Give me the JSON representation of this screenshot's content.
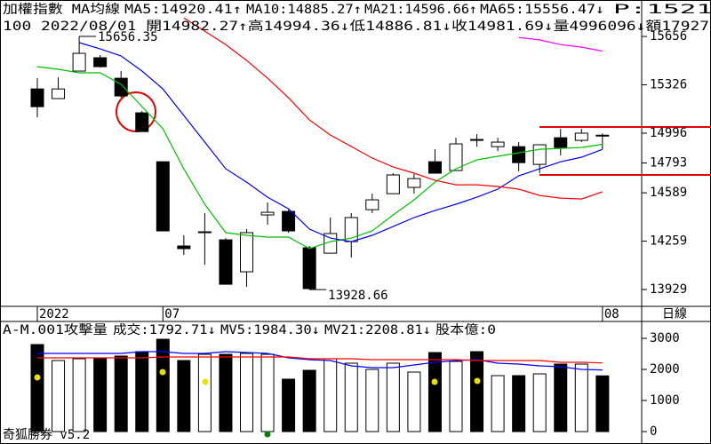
{
  "chart_data": [
    {
      "type": "candlestick",
      "title": "加權指數 MA均線",
      "subtitle": "100 2022/08/01 開14982.27↑高14994.36↓低14886.81↓收14981.69↓量4996096↓額17927",
      "extra_text": "P:1521",
      "x_label": "日線",
      "categories": [
        "2022",
        null,
        null,
        null,
        null,
        null,
        "07",
        null,
        null,
        null,
        null,
        null,
        null,
        null,
        null,
        null,
        null,
        null,
        null,
        null,
        null,
        null,
        null,
        null,
        null,
        null,
        null,
        "08"
      ],
      "open": [
        15298,
        15232,
        15420,
        15511,
        15371,
        15135,
        14801,
        14226,
        14323,
        14268,
        14050,
        14438,
        14462,
        14214,
        14177,
        14256,
        14474,
        14583,
        14626,
        14801,
        14741,
        14953,
        14904,
        14904,
        14783,
        14965,
        14947,
        14982.27
      ],
      "high": [
        15371,
        15377,
        15656.35,
        15529,
        15420,
        15147,
        14801,
        14298,
        14450,
        14280,
        14341,
        14523,
        14474,
        14226,
        14420,
        14450,
        14583,
        14723,
        14717,
        14886,
        14965,
        14989,
        14965,
        14935,
        14917,
        15026,
        15026,
        14994.36
      ],
      "low": [
        15104,
        15232,
        15420,
        15444,
        15238,
        15007,
        14329,
        14165,
        14098,
        13965,
        13947,
        14371,
        14317,
        13928.66,
        14177,
        14147,
        14450,
        14583,
        14583,
        14723,
        14741,
        14904,
        14874,
        14735,
        14723,
        14844,
        14935,
        14886.81
      ],
      "close": [
        15177,
        15298,
        15541,
        15450,
        15250,
        15007,
        14329,
        14208,
        14317,
        13965,
        14317,
        14456,
        14329,
        13935,
        14311,
        14420,
        14541,
        14711,
        14686,
        14723,
        14923,
        14947,
        14935,
        14795,
        14917,
        14898,
        14996,
        14981.69
      ],
      "up_color": "#ffffff",
      "down_color": "#000000",
      "series": [
        {
          "name": "MA5:14920.41↑",
          "color": "#00c000",
          "values": [
            15450,
            15432,
            15408,
            15408,
            15329,
            15177,
            15026,
            14753,
            14511,
            14317,
            14299,
            14287,
            14287,
            14208,
            14256,
            14280,
            14329,
            14438,
            14541,
            14662,
            14753,
            14814,
            14838,
            14862,
            14886,
            14892,
            14898,
            14920.41
          ]
        },
        {
          "name": "MA10:14885.27↑",
          "color": "#0000ff",
          "values": [
            null,
            null,
            15614,
            15571,
            15523,
            15420,
            15298,
            15117,
            14935,
            14753,
            14662,
            14559,
            14480,
            14341,
            14280,
            14256,
            14299,
            14359,
            14420,
            14468,
            14511,
            14559,
            14614,
            14705,
            14753,
            14801,
            14832,
            14885.27
          ]
        },
        {
          "name": "MA21:14596.66↑",
          "color": "#ff0000",
          "values": [
            null,
            null,
            null,
            null,
            null,
            null,
            null,
            15783,
            15692,
            15601,
            15492,
            15371,
            15238,
            15086,
            14983,
            14905,
            14826,
            14765,
            14723,
            14674,
            14644,
            14644,
            14632,
            14614,
            14571,
            14553,
            14547,
            14596.66
          ]
        },
        {
          "name": "MA65:15556.47↓",
          "color": "#ff00ff",
          "values": [
            null,
            null,
            null,
            null,
            null,
            null,
            null,
            null,
            null,
            null,
            null,
            null,
            null,
            null,
            null,
            null,
            null,
            null,
            null,
            null,
            null,
            null,
            null,
            15650,
            15632,
            15601,
            15583,
            15556.47
          ]
        }
      ],
      "annotations": [
        {
          "text": "15656.35",
          "at": 2,
          "side": "high"
        },
        {
          "text": "13928.66",
          "at": 13,
          "side": "low"
        }
      ],
      "ylim": [
        13814,
        15905
      ],
      "yticks": [
        15656,
        15326,
        14996,
        14793,
        14589,
        14259,
        13929
      ]
    },
    {
      "type": "bar",
      "title": "A-M.001攻擊量",
      "name": "成交:1792.71↓",
      "name_color": "#00c000",
      "extra_text": "股本億:0",
      "extra_color": "#ff00ff",
      "values": [
        2800,
        2286,
        2343,
        2343,
        2429,
        2571,
        2971,
        2286,
        2486,
        2486,
        2514,
        2486,
        1686,
        1971,
        2343,
        2200,
        2000,
        2200,
        1914,
        2543,
        2257,
        2571,
        1800,
        1800,
        1857,
        2171,
        2171,
        1792.71
      ],
      "bar_colors": [
        "#000000",
        "#ffffff",
        "#ffffff",
        "#000000",
        "#000000",
        "#000000",
        "#000000",
        "#000000",
        "#ffffff",
        "#000000",
        "#ffffff",
        "#ffffff",
        "#000000",
        "#000000",
        "#ffffff",
        "#ffffff",
        "#ffffff",
        "#ffffff",
        "#ffffff",
        "#000000",
        "#ffffff",
        "#000000",
        "#ffffff",
        "#000000",
        "#ffffff",
        "#000000",
        "#ffffff",
        "#000000"
      ],
      "series": [
        {
          "name": "MV5:1984.30↓",
          "color": "#0000ff",
          "values": [
            2514,
            2514,
            2514,
            2514,
            2514,
            2571,
            2571,
            2514,
            2514,
            2571,
            2543,
            2514,
            2371,
            2314,
            2286,
            2114,
            2057,
            2057,
            2143,
            2229,
            2286,
            2314,
            2200,
            2171,
            2114,
            2086,
            2000,
            1984.3
          ]
        },
        {
          "name": "MV21:2208.81↓",
          "color": "#ff0000",
          "values": [
            2371,
            2371,
            2371,
            2371,
            2371,
            2371,
            2400,
            2400,
            2400,
            2400,
            2400,
            2400,
            2400,
            2343,
            2343,
            2343,
            2314,
            2314,
            2314,
            2314,
            2314,
            2286,
            2286,
            2286,
            2286,
            2229,
            2229,
            2208.81
          ]
        }
      ],
      "ylim": [
        -343,
        3543
      ],
      "yticks": [
        0,
        1000,
        2000,
        3000
      ]
    }
  ],
  "footer": "奇狐勝券 v5.2"
}
